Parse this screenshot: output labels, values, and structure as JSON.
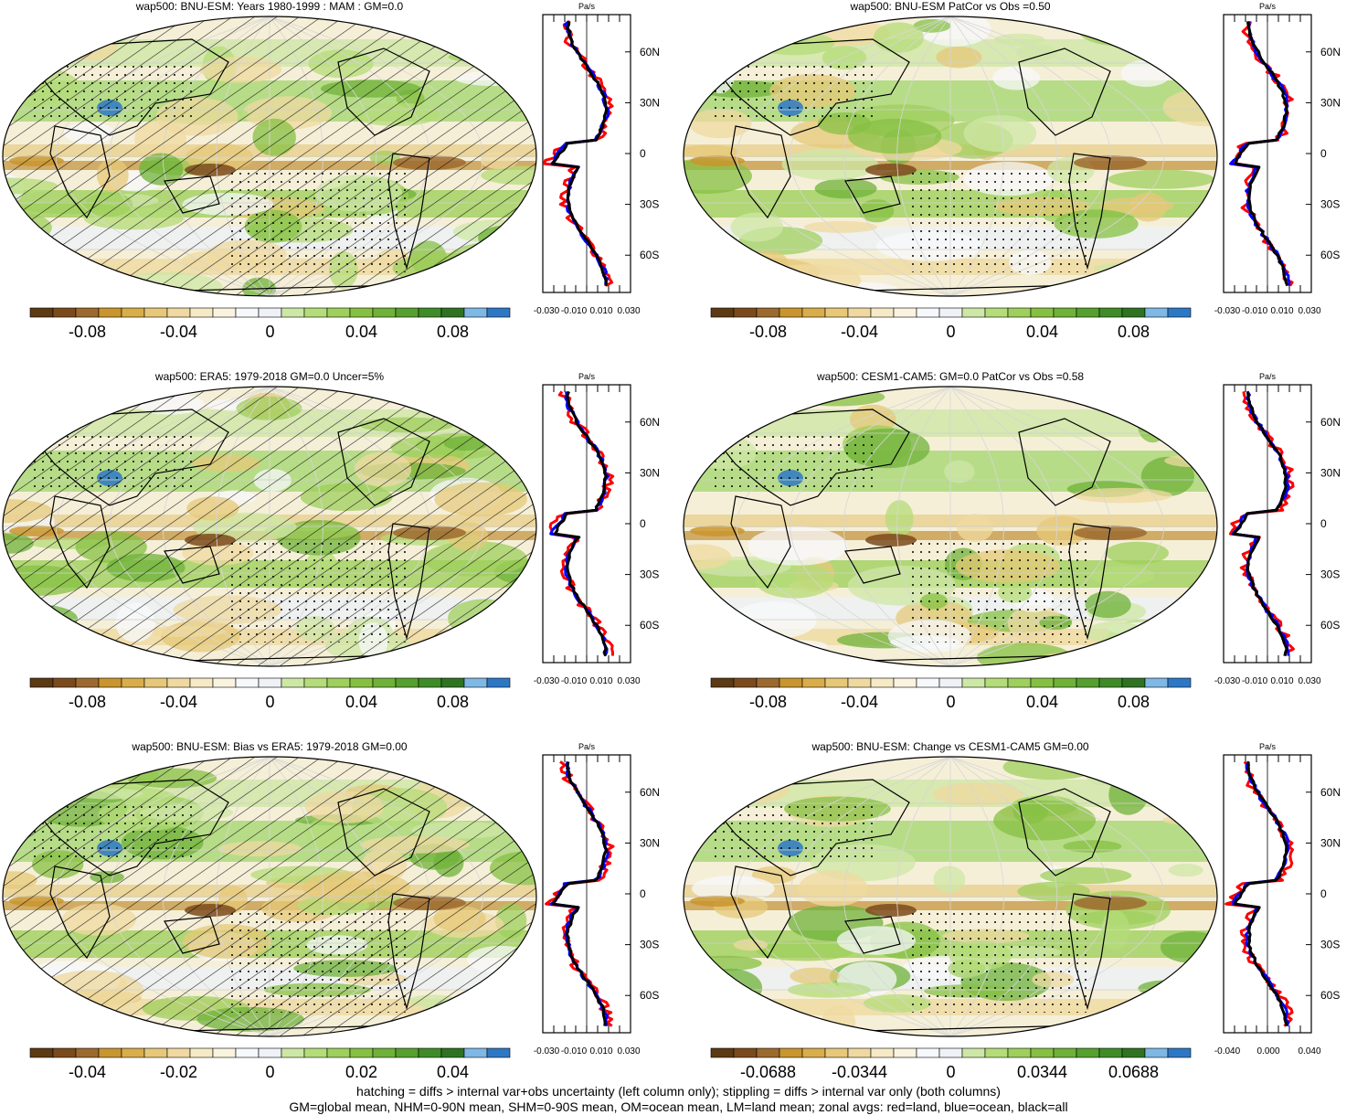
{
  "colorbar_colors": [
    "#5c3a14",
    "#7b4a1c",
    "#9c6a2e",
    "#c9952e",
    "#d8ad4a",
    "#e6c878",
    "#efd9a0",
    "#f6e9c6",
    "#f9f3df",
    "#f7f8fb",
    "#eef1f6",
    "#cde7a6",
    "#b4dc78",
    "#9fcf5c",
    "#86c043",
    "#6fb139",
    "#56a02f",
    "#3f8b28",
    "#2f7322",
    "#7fb7e5",
    "#2d78c5"
  ],
  "zonal_colors": {
    "land": "#ff0000",
    "ocean": "#0000ff",
    "all": "#000000"
  },
  "panels": [
    {
      "title": "wap500: BNU-ESM: Years 1980-1999 : MAM : GM=0.0",
      "colorbar_labels": [
        "-0.08",
        "-0.04",
        "0",
        "0.04",
        "0.08"
      ],
      "zonal_xticks": [
        "-0.030",
        "-0.010",
        "0.010",
        "0.030"
      ],
      "zonal_yticks": [
        "60N",
        "30N",
        "0",
        "30S",
        "60S"
      ],
      "zonal_unit": "Pa/s",
      "hatched": true
    },
    {
      "title": "wap500: BNU-ESM PatCor vs Obs =0.50",
      "colorbar_labels": [
        "-0.08",
        "-0.04",
        "0",
        "0.04",
        "0.08"
      ],
      "zonal_xticks": [
        "-0.030",
        "-0.010",
        "0.010",
        "0.030"
      ],
      "zonal_yticks": [
        "60N",
        "30N",
        "0",
        "30S",
        "60S"
      ],
      "zonal_unit": "Pa/s",
      "hatched": false
    },
    {
      "title": "wap500: ERA5: 1979-2018 GM=0.0 Uncer=5%",
      "colorbar_labels": [
        "-0.08",
        "-0.04",
        "0",
        "0.04",
        "0.08"
      ],
      "zonal_xticks": [
        "-0.030",
        "-0.010",
        "0.010",
        "0.030"
      ],
      "zonal_yticks": [
        "60N",
        "30N",
        "0",
        "30S",
        "60S"
      ],
      "zonal_unit": "Pa/s",
      "hatched": true
    },
    {
      "title": "wap500: CESM1-CAM5: GM=0.0 PatCor vs Obs =0.58",
      "colorbar_labels": [
        "-0.08",
        "-0.04",
        "0",
        "0.04",
        "0.08"
      ],
      "zonal_xticks": [
        "-0.030",
        "-0.010",
        "0.010",
        "0.030"
      ],
      "zonal_yticks": [
        "60N",
        "30N",
        "0",
        "30S",
        "60S"
      ],
      "zonal_unit": "Pa/s",
      "hatched": false
    },
    {
      "title": "wap500: BNU-ESM: Bias vs ERA5: 1979-2018 GM=0.00",
      "colorbar_labels": [
        "-0.04",
        "-0.02",
        "0",
        "0.02",
        "0.04"
      ],
      "zonal_xticks": [
        "-0.030",
        "-0.010",
        "0.010",
        "0.030"
      ],
      "zonal_yticks": [
        "60N",
        "30N",
        "0",
        "30S",
        "60S"
      ],
      "zonal_unit": "Pa/s",
      "hatched": true
    },
    {
      "title": "wap500: BNU-ESM: Change vs CESM1-CAM5 GM=0.00",
      "colorbar_labels": [
        "-0.0688",
        "-0.0344",
        "0",
        "0.0344",
        "0.0688"
      ],
      "zonal_xticks": [
        "-0.040",
        "0.000",
        "0.040"
      ],
      "zonal_yticks": [
        "60N",
        "30N",
        "0",
        "30S",
        "60S"
      ],
      "zonal_unit": "Pa/s",
      "hatched": false
    }
  ],
  "footnote": {
    "line1": "hatching = diffs > internal var+obs uncertainty (left column only); stippling = diffs > internal var only (both columns)",
    "line2": "GM=global mean, NHM=0-90N mean, SHM=0-90S mean, OM=ocean mean, LM=land mean; zonal avgs: red=land, blue=ocean, black=all"
  }
}
